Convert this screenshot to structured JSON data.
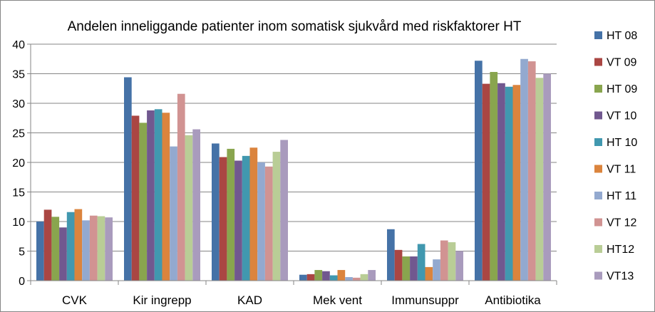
{
  "chart_data": {
    "type": "bar",
    "title": "Andelen inneliggande patienter inom somatisk sjukvård med riskfaktorer HT",
    "xlabel": "",
    "ylabel": "",
    "ylim": [
      0,
      40
    ],
    "yticks": [
      0,
      5,
      10,
      15,
      20,
      25,
      30,
      35,
      40
    ],
    "grid": true,
    "legend_position": "right",
    "categories": [
      "CVK",
      "Kir ingrepp",
      "KAD",
      "Mek vent",
      "Immunsuppr",
      "Antibiotika"
    ],
    "series": [
      {
        "name": "HT 08",
        "color": "#4572A7",
        "values": [
          10.0,
          34.4,
          23.2,
          1.0,
          8.7,
          37.2
        ]
      },
      {
        "name": "VT 09",
        "color": "#AA4643",
        "values": [
          12.0,
          27.9,
          20.9,
          1.1,
          5.2,
          33.3
        ]
      },
      {
        "name": "HT 09",
        "color": "#89A54E",
        "values": [
          10.8,
          26.7,
          22.3,
          1.8,
          4.1,
          35.3
        ]
      },
      {
        "name": "VT 10",
        "color": "#71588F",
        "values": [
          9.0,
          28.8,
          20.3,
          1.6,
          4.1,
          33.4
        ]
      },
      {
        "name": "HT 10",
        "color": "#4198AF",
        "values": [
          11.6,
          29.0,
          21.1,
          0.9,
          6.2,
          32.8
        ]
      },
      {
        "name": "VT 11",
        "color": "#DB843D",
        "values": [
          12.1,
          28.4,
          22.5,
          1.8,
          2.3,
          33.1
        ]
      },
      {
        "name": "HT 11",
        "color": "#93A9CF",
        "values": [
          10.2,
          22.7,
          20.0,
          0.6,
          3.6,
          37.5
        ]
      },
      {
        "name": "VT 12",
        "color": "#D19392",
        "values": [
          11.0,
          31.6,
          19.3,
          0.5,
          6.8,
          37.1
        ]
      },
      {
        "name": "HT12",
        "color": "#B9CD96",
        "values": [
          10.9,
          24.6,
          21.8,
          1.1,
          6.5,
          34.3
        ]
      },
      {
        "name": "VT13",
        "color": "#A99BBD",
        "values": [
          10.7,
          25.6,
          23.8,
          1.8,
          5.0,
          35.0
        ]
      }
    ]
  }
}
